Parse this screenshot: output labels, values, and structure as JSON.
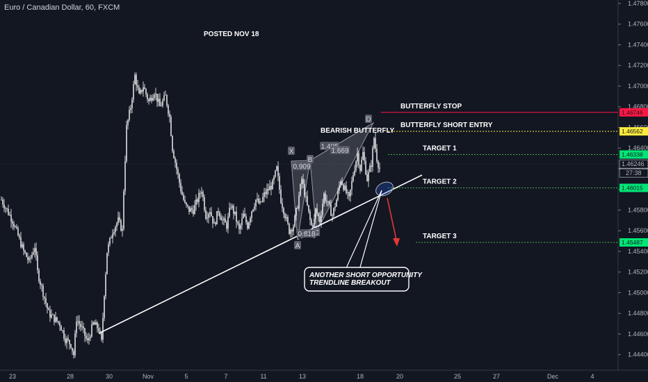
{
  "header": {
    "title": "Euro / Canadian Dollar, 60, FXCM"
  },
  "chart_data": {
    "type": "candlestick",
    "symbol": "Euro / Canadian Dollar",
    "interval": "60",
    "source": "FXCM",
    "ylim": [
      1.4425,
      1.478
    ],
    "y_ticks": [
      "1.44400",
      "1.44600",
      "1.44800",
      "1.45000",
      "1.45200",
      "1.45400",
      "1.45600",
      "1.45800",
      "1.46000",
      "1.46200",
      "1.46400",
      "1.46600",
      "1.46800",
      "1.47000",
      "1.47200",
      "1.47400",
      "1.47600",
      "1.47800"
    ],
    "x_ticks": [
      "23",
      "28",
      "30",
      "Nov",
      "5",
      "7",
      "11",
      "13",
      "18",
      "20",
      "25",
      "27",
      "Dec",
      "4"
    ],
    "price_path": [
      [
        0,
        1.459
      ],
      [
        4,
        1.458
      ],
      [
        8,
        1.457
      ],
      [
        12,
        1.4555
      ],
      [
        16,
        1.454
      ],
      [
        20,
        1.453
      ],
      [
        24,
        1.4545
      ],
      [
        26,
        1.452
      ],
      [
        30,
        1.45
      ],
      [
        34,
        1.448
      ],
      [
        38,
        1.4475
      ],
      [
        42,
        1.447
      ],
      [
        46,
        1.4455
      ],
      [
        50,
        1.445
      ],
      [
        52,
        1.444
      ],
      [
        54,
        1.4475
      ],
      [
        58,
        1.4465
      ],
      [
        62,
        1.4452
      ],
      [
        66,
        1.447
      ],
      [
        70,
        1.4465
      ],
      [
        72,
        1.4452
      ],
      [
        74,
        1.45
      ],
      [
        76,
        1.454
      ],
      [
        80,
        1.456
      ],
      [
        84,
        1.457
      ],
      [
        87,
        1.456
      ],
      [
        88,
        1.46
      ],
      [
        90,
        1.466
      ],
      [
        93,
        1.468
      ],
      [
        96,
        1.471
      ],
      [
        99,
        1.469
      ],
      [
        102,
        1.47
      ],
      [
        106,
        1.4685
      ],
      [
        110,
        1.4695
      ],
      [
        114,
        1.468
      ],
      [
        118,
        1.469
      ],
      [
        121,
        1.467
      ],
      [
        123,
        1.464
      ],
      [
        126,
        1.462
      ],
      [
        129,
        1.46
      ],
      [
        132,
        1.4585
      ],
      [
        135,
        1.458
      ],
      [
        138,
        1.458
      ],
      [
        141,
        1.459
      ],
      [
        144,
        1.46
      ],
      [
        147,
        1.4575
      ],
      [
        150,
        1.458
      ],
      [
        153,
        1.4565
      ],
      [
        156,
        1.458
      ],
      [
        159,
        1.457
      ],
      [
        162,
        1.4565
      ],
      [
        165,
        1.4585
      ],
      [
        168,
        1.4575
      ],
      [
        171,
        1.456
      ],
      [
        174,
        1.4575
      ],
      [
        177,
        1.4565
      ],
      [
        180,
        1.458
      ],
      [
        183,
        1.459
      ],
      [
        186,
        1.4585
      ],
      [
        189,
        1.4595
      ],
      [
        192,
        1.46
      ],
      [
        195,
        1.4605
      ],
      [
        198,
        1.462
      ],
      [
        201,
        1.459
      ],
      [
        204,
        1.4575
      ],
      [
        207,
        1.456
      ],
      [
        210,
        1.4565
      ],
      [
        213,
        1.4585
      ],
      [
        216,
        1.461
      ],
      [
        219,
        1.459
      ],
      [
        222,
        1.457
      ],
      [
        224,
        1.456
      ],
      [
        226,
        1.458
      ],
      [
        229,
        1.457
      ],
      [
        232,
        1.4595
      ],
      [
        235,
        1.4585
      ],
      [
        238,
        1.4575
      ],
      [
        241,
        1.459
      ],
      [
        244,
        1.461
      ],
      [
        247,
        1.46
      ],
      [
        250,
        1.459
      ],
      [
        253,
        1.4615
      ],
      [
        256,
        1.4635
      ],
      [
        258,
        1.462
      ],
      [
        260,
        1.4635
      ],
      [
        263,
        1.461
      ],
      [
        266,
        1.4625
      ],
      [
        268,
        1.465
      ],
      [
        270,
        1.463
      ],
      [
        272,
        1.462
      ]
    ],
    "annotations": {
      "posted": "POSTED NOV 18",
      "pattern": "BEARISH BUTTERFLY",
      "callout_line1": "ANOTHER SHORT OPPORTUNITY",
      "callout_line2": "TRENDLINE BREAKOUT",
      "pattern_points": [
        "X",
        "A",
        "B",
        "C",
        "D"
      ],
      "ratios": [
        "0.909",
        "1.405",
        "1.669",
        "0.818"
      ]
    },
    "levels": [
      {
        "label": "BUTTERFLY STOP",
        "price": 1.46746,
        "tag": "1.46746",
        "color": "#ff1744",
        "text_color": "#ffffff",
        "style": "solid"
      },
      {
        "label": "BUTTERFLY SHORT ENTRY",
        "price": 1.46562,
        "tag": "1.46562",
        "color": "#ffeb3b",
        "text_color": "#131722",
        "style": "dotted"
      },
      {
        "label": "TARGET 1",
        "price": 1.46338,
        "tag": "1.46338",
        "color": "#4caf50",
        "text_color": "#131722",
        "style": "dotted"
      },
      {
        "label": "TARGET 2",
        "price": 1.46015,
        "tag": "1.46015",
        "color": "#4caf50",
        "text_color": "#131722",
        "style": "dotted"
      },
      {
        "label": "TARGET 3",
        "price": 1.45487,
        "tag": "1.45487",
        "color": "#4caf50",
        "text_color": "#131722",
        "style": "dotted"
      }
    ],
    "last_price": "1.46246",
    "countdown": "27:38",
    "colors": {
      "background": "#131722",
      "candle": "#ffffff",
      "trendline": "#ffffff",
      "arrow": "#e53935",
      "pattern_fill": "#787b86",
      "tag_green": "#00e676"
    }
  }
}
